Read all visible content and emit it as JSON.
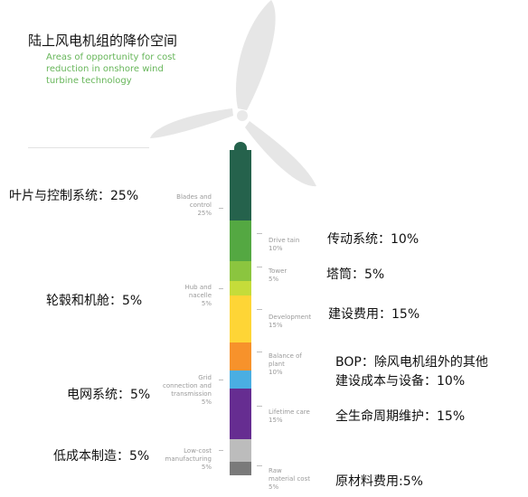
{
  "header": {
    "title_cn": "陆上风电机组的降价空间",
    "title_en_lines": [
      "Areas of opportunity for cost",
      "reduction in onshore wind",
      "turbine technology"
    ]
  },
  "tower_segments": [
    {
      "id": "blades",
      "label_lines": [
        "Blades and",
        "control",
        "25%"
      ],
      "side": "left",
      "share_pct": 25,
      "color": "#25624c"
    },
    {
      "id": "drive_train",
      "label_lines": [
        "Drive tain",
        "10%"
      ],
      "side": "right",
      "share_pct": 10,
      "color": "#54a842"
    },
    {
      "id": "tower",
      "label_lines": [
        "Tower",
        "5%"
      ],
      "side": "right",
      "share_pct": 5,
      "color": "#8bc53f"
    },
    {
      "id": "hub",
      "label_lines": [
        "Hub and",
        "nacelle",
        "5%"
      ],
      "side": "left",
      "share_pct": 5,
      "color": "#c5dc3a"
    },
    {
      "id": "development",
      "label_lines": [
        "Development",
        "15%"
      ],
      "side": "right",
      "share_pct": 15,
      "color": "#fed536"
    },
    {
      "id": "bop",
      "label_lines": [
        "Balance of",
        "plant",
        "10%"
      ],
      "side": "right",
      "share_pct": 10,
      "color": "#f7922b"
    },
    {
      "id": "grid",
      "label_lines": [
        "Grid",
        "connection and",
        "transmission",
        "5%"
      ],
      "side": "left",
      "share_pct": 5,
      "color": "#4aaee2"
    },
    {
      "id": "lifetime",
      "label_lines": [
        "Lifetime care",
        "15%"
      ],
      "side": "right",
      "share_pct": 15,
      "color": "#662d91"
    },
    {
      "id": "manufacturing",
      "label_lines": [
        "Low-cost",
        "manufacturing",
        "5%"
      ],
      "side": "left",
      "share_pct": 5,
      "color": "#bcbcbc"
    },
    {
      "id": "raw",
      "label_lines": [
        "Raw",
        "material cost",
        "5%"
      ],
      "side": "right",
      "share_pct": 5,
      "color": "#7a7a7a"
    }
  ],
  "annotations": {
    "blades": "叶片与控制系统：25%",
    "hub": "轮毂和机舱：5%",
    "grid": "电网系统：5%",
    "manufacturing": "低成本制造：5%",
    "drive_train": "传动系统：10%",
    "tower": "塔筒：5%",
    "development": "建设费用：15%",
    "bop_lines": [
      "BOP：除风电机组外的其他",
      "建设成本与设备：10%"
    ],
    "lifetime": "全生命周期维护：15%",
    "raw": "原材料费用:5%"
  },
  "colors": {
    "title_en": "#67b65a",
    "rotor_blade": "#e6e6e6",
    "small_label": "#9a9a9a"
  }
}
